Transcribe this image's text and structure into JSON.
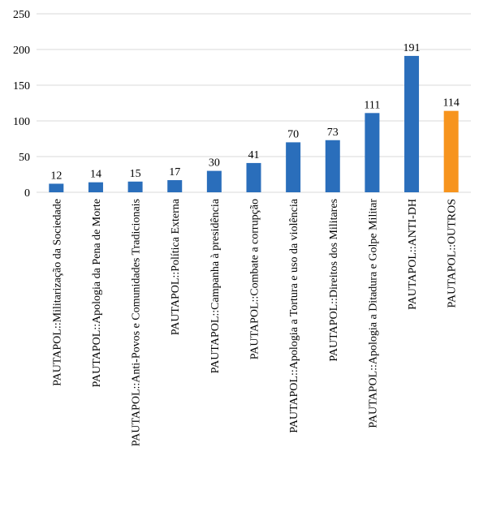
{
  "chart_data": {
    "type": "bar",
    "categories": [
      "PAUTAPOL::Militarização da Sociedade",
      "PAUTAPOL::Apologia da Pena de Morte",
      "PAUTAPOL::Anti-Povos e Comunidades Tradicionais",
      "PAUTAPOL::Política Externa",
      "PAUTAPOL::Campanha à presidência",
      "PAUTAPOL::Combate a corrupção",
      "PAUTAPOL::Apologia a Tortura e uso da violência",
      "PAUTAPOL::Direitos dos Militares",
      "PAUTAPOL::Apologia a Ditadura e Golpe Militar",
      "PAUTAPOL::ANTI-DH",
      "PAUTAPOL::OUTROS"
    ],
    "values": [
      12,
      14,
      15,
      17,
      30,
      41,
      70,
      73,
      111,
      191,
      114
    ],
    "colors": [
      "#2a6ebb",
      "#2a6ebb",
      "#2a6ebb",
      "#2a6ebb",
      "#2a6ebb",
      "#2a6ebb",
      "#2a6ebb",
      "#2a6ebb",
      "#2a6ebb",
      "#2a6ebb",
      "#f7941d"
    ],
    "ylim": [
      0,
      250
    ],
    "yticks": [
      0,
      50,
      100,
      150,
      200,
      250
    ],
    "grid": true
  }
}
